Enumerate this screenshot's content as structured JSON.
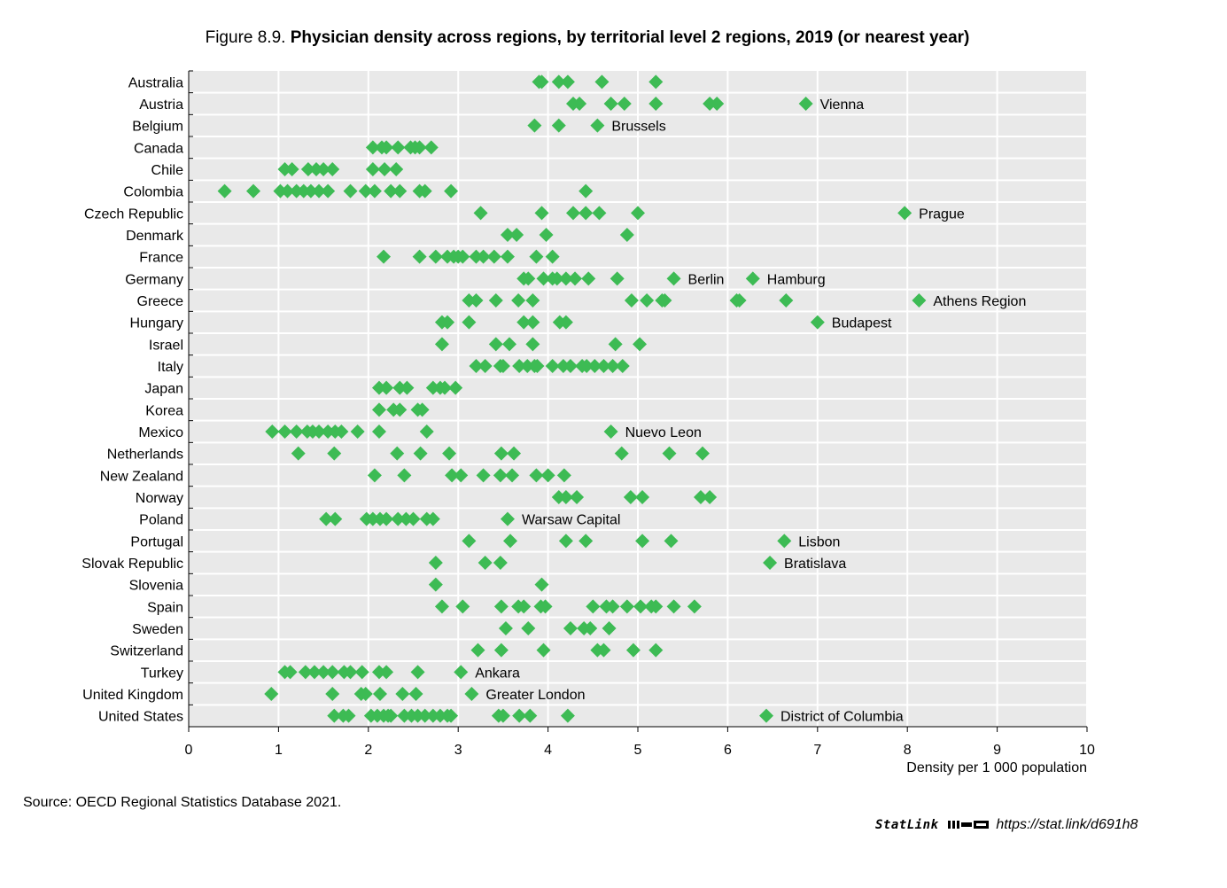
{
  "figure_label": "Figure 8.9.",
  "figure_title": "Physician density across regions, by territorial level 2 regions, 2019 (or nearest year)",
  "source": "Source: OECD Regional Statistics Database 2021.",
  "statlink": {
    "brand": "StatLink",
    "url": "https://stat.link/d691h8",
    "logo_icon": "statlink-logo-icon"
  },
  "colors": {
    "marker": "#3dbb54",
    "plot_bg": "#e9e9e9",
    "grid": "#ffffff"
  },
  "chart_data": {
    "type": "scatter",
    "marker": "diamond",
    "title": "Physician density across regions, by territorial level 2 regions, 2019 (or nearest year)",
    "xlabel": "Density per 1 000 population",
    "ylabel": "",
    "xlim": [
      0,
      10
    ],
    "xticks": [
      0,
      1,
      2,
      3,
      4,
      5,
      6,
      7,
      8,
      9,
      10
    ],
    "grid": true,
    "countries": [
      {
        "name": "Australia",
        "values": [
          3.9,
          3.93,
          4.12,
          4.22,
          4.6,
          5.2
        ]
      },
      {
        "name": "Austria",
        "values": [
          4.28,
          4.35,
          4.7,
          4.85,
          5.2,
          5.8,
          5.88,
          6.87
        ],
        "label": "Vienna",
        "label_value": 6.87
      },
      {
        "name": "Belgium",
        "values": [
          3.85,
          4.12,
          4.55
        ],
        "label": "Brussels",
        "label_value": 4.55
      },
      {
        "name": "Canada",
        "values": [
          2.05,
          2.15,
          2.2,
          2.33,
          2.47,
          2.52,
          2.57,
          2.7
        ]
      },
      {
        "name": "Chile",
        "values": [
          1.07,
          1.15,
          1.33,
          1.42,
          1.5,
          1.6,
          2.05,
          2.18,
          2.31
        ]
      },
      {
        "name": "Colombia",
        "values": [
          0.4,
          0.72,
          1.02,
          1.1,
          1.2,
          1.28,
          1.36,
          1.45,
          1.55,
          1.8,
          1.97,
          2.07,
          2.25,
          2.35,
          2.57,
          2.63,
          2.92,
          4.42
        ]
      },
      {
        "name": "Czech Republic",
        "values": [
          3.25,
          3.93,
          4.28,
          4.42,
          4.57,
          5.0,
          7.97
        ],
        "label": "Prague",
        "label_value": 7.97
      },
      {
        "name": "Denmark",
        "values": [
          3.55,
          3.65,
          3.98,
          4.88
        ]
      },
      {
        "name": "France",
        "values": [
          2.17,
          2.57,
          2.75,
          2.88,
          2.95,
          3.0,
          3.05,
          3.2,
          3.28,
          3.4,
          3.55,
          3.87,
          4.05
        ]
      },
      {
        "name": "Germany",
        "values": [
          3.73,
          3.78,
          3.95,
          4.05,
          4.1,
          4.2,
          4.3,
          4.45,
          4.77,
          5.4,
          6.28
        ],
        "labels": [
          {
            "text": "Berlin",
            "value": 5.4
          },
          {
            "text": "Hamburg",
            "value": 6.28
          }
        ]
      },
      {
        "name": "Greece",
        "values": [
          3.12,
          3.2,
          3.42,
          3.67,
          3.83,
          4.93,
          5.1,
          5.27,
          5.3,
          6.1,
          6.13,
          6.65,
          8.13
        ],
        "label": "Athens Region",
        "label_value": 8.13
      },
      {
        "name": "Hungary",
        "values": [
          2.82,
          2.88,
          3.12,
          3.73,
          3.83,
          4.13,
          4.2,
          7.0
        ],
        "label": "Budapest",
        "label_value": 7.0
      },
      {
        "name": "Israel",
        "values": [
          2.82,
          3.42,
          3.57,
          3.83,
          4.75,
          5.02
        ]
      },
      {
        "name": "Italy",
        "values": [
          3.2,
          3.3,
          3.47,
          3.5,
          3.68,
          3.77,
          3.85,
          3.88,
          4.05,
          4.17,
          4.25,
          4.38,
          4.43,
          4.52,
          4.62,
          4.72,
          4.83
        ]
      },
      {
        "name": "Japan",
        "values": [
          2.12,
          2.2,
          2.35,
          2.43,
          2.72,
          2.8,
          2.85,
          2.97
        ]
      },
      {
        "name": "Korea",
        "values": [
          2.12,
          2.28,
          2.35,
          2.55,
          2.6
        ]
      },
      {
        "name": "Mexico",
        "values": [
          0.93,
          1.07,
          1.2,
          1.32,
          1.38,
          1.45,
          1.55,
          1.63,
          1.7,
          1.88,
          2.12,
          2.65,
          4.7
        ],
        "label": "Nuevo Leon",
        "label_value": 4.7
      },
      {
        "name": "Netherlands",
        "values": [
          1.22,
          1.62,
          2.32,
          2.58,
          2.9,
          3.48,
          3.62,
          4.82,
          5.35,
          5.72
        ]
      },
      {
        "name": "New Zealand",
        "values": [
          2.07,
          2.4,
          2.93,
          3.03,
          3.28,
          3.47,
          3.6,
          3.87,
          4.0,
          4.18
        ]
      },
      {
        "name": "Norway",
        "values": [
          4.12,
          4.2,
          4.32,
          4.92,
          5.05,
          5.7,
          5.8
        ]
      },
      {
        "name": "Poland",
        "values": [
          1.53,
          1.63,
          1.98,
          2.05,
          2.13,
          2.2,
          2.33,
          2.42,
          2.5,
          2.65,
          2.72,
          3.55
        ],
        "label": "Warsaw Capital",
        "label_value": 3.55
      },
      {
        "name": "Portugal",
        "values": [
          3.12,
          3.58,
          4.2,
          4.42,
          5.05,
          5.37,
          6.63
        ],
        "label": "Lisbon",
        "label_value": 6.63
      },
      {
        "name": "Slovak Republic",
        "values": [
          2.75,
          3.3,
          3.47,
          6.47
        ],
        "label": "Bratislava",
        "label_value": 6.47
      },
      {
        "name": "Slovenia",
        "values": [
          2.75,
          3.93
        ]
      },
      {
        "name": "Spain",
        "values": [
          2.82,
          3.05,
          3.48,
          3.67,
          3.73,
          3.92,
          3.97,
          4.5,
          4.65,
          4.72,
          4.88,
          5.03,
          5.15,
          5.2,
          5.4,
          5.63
        ]
      },
      {
        "name": "Sweden",
        "values": [
          3.53,
          3.78,
          4.25,
          4.4,
          4.47,
          4.68
        ]
      },
      {
        "name": "Switzerland",
        "values": [
          3.22,
          3.48,
          3.95,
          4.55,
          4.62,
          4.95,
          5.2
        ]
      },
      {
        "name": "Turkey",
        "values": [
          1.07,
          1.13,
          1.3,
          1.4,
          1.5,
          1.6,
          1.73,
          1.8,
          1.93,
          2.12,
          2.2,
          2.55,
          3.03
        ],
        "label": "Ankara",
        "label_value": 3.03
      },
      {
        "name": "United Kingdom",
        "values": [
          0.92,
          1.6,
          1.92,
          1.97,
          2.13,
          2.38,
          2.53,
          3.15
        ],
        "label": "Greater London",
        "label_value": 3.15
      },
      {
        "name": "United States",
        "values": [
          1.62,
          1.72,
          1.78,
          2.03,
          2.1,
          2.17,
          2.22,
          2.25,
          2.4,
          2.48,
          2.55,
          2.63,
          2.72,
          2.8,
          2.88,
          2.92,
          3.45,
          3.5,
          3.68,
          3.8,
          4.22,
          6.43
        ],
        "label": "District of Columbia",
        "label_value": 6.43
      }
    ]
  }
}
